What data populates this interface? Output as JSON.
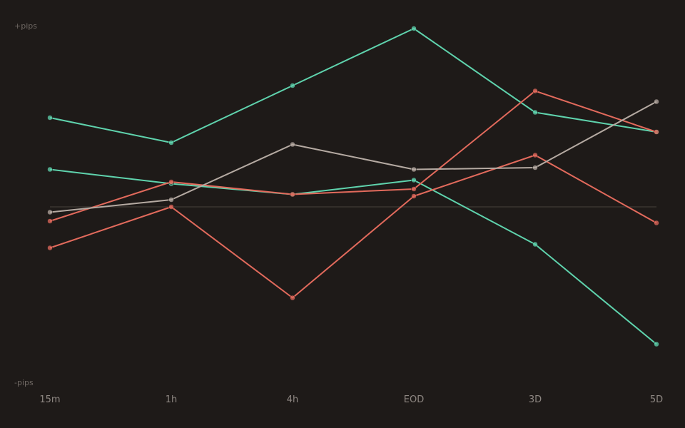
{
  "chart_data": {
    "type": "line",
    "title": "",
    "xlabel": "",
    "ylabel": "",
    "y_top_label": "+pips",
    "y_bottom_label": "-pips",
    "categories": [
      "15m",
      "1h",
      "4h",
      "EOD",
      "3D",
      "5D"
    ],
    "ylim": [
      -100,
      100
    ],
    "zero_line": true,
    "legend": "none",
    "grid": false,
    "series": [
      {
        "color": "#5fd3ad",
        "values": [
          50,
          36,
          68,
          100,
          53,
          42
        ]
      },
      {
        "color": "#5fd3ad",
        "values": [
          21,
          13,
          7,
          15,
          -21,
          -77
        ]
      },
      {
        "color": "#e26a5c",
        "values": [
          -8,
          14,
          7,
          10,
          65,
          42
        ]
      },
      {
        "color": "#e26a5c",
        "values": [
          -23,
          0,
          -51,
          6,
          29,
          -9
        ]
      },
      {
        "color": "#b5aaa2",
        "values": [
          -3,
          4,
          35,
          21,
          22,
          59
        ]
      }
    ]
  }
}
